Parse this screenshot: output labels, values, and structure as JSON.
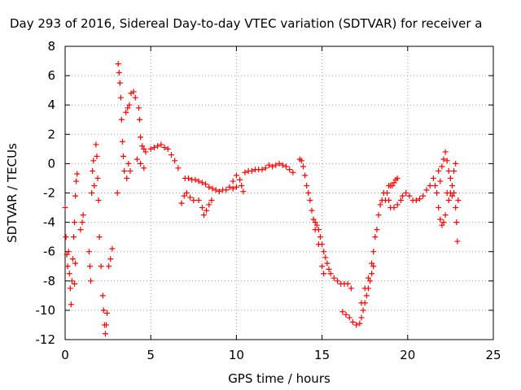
{
  "chart_data": {
    "type": "scatter",
    "title": "Day 293 of 2016, Sidereal Day-to-day VTEC variation (SDTVAR) for receiver a",
    "xlabel": "GPS time / hours",
    "ylabel": "SDTVAR / TECUs",
    "xlim": [
      0,
      25
    ],
    "ylim": [
      -12,
      8
    ],
    "xticks": [
      0,
      5,
      10,
      15,
      20,
      25
    ],
    "yticks": [
      -12,
      -10,
      -8,
      -6,
      -4,
      -2,
      0,
      2,
      4,
      6,
      8
    ],
    "grid": true,
    "marker": "plus",
    "marker_color": "#ff0000",
    "series": [
      {
        "points": [
          [
            0.0,
            -3.0
          ],
          [
            0.05,
            -5.0
          ],
          [
            0.1,
            -6.2
          ],
          [
            0.15,
            -7.0
          ],
          [
            0.2,
            -6.0
          ],
          [
            0.25,
            -7.5
          ],
          [
            0.3,
            -8.5
          ],
          [
            0.35,
            -9.6
          ],
          [
            0.4,
            -8.0
          ],
          [
            0.45,
            -6.5
          ],
          [
            0.5,
            -5.0
          ],
          [
            0.55,
            -4.0
          ],
          [
            0.6,
            -2.2
          ],
          [
            0.65,
            -1.2
          ],
          [
            0.7,
            -0.7
          ],
          [
            0.6,
            -6.8
          ],
          [
            0.55,
            -8.2
          ],
          [
            0.9,
            -4.5
          ],
          [
            1.0,
            -4.0
          ],
          [
            1.05,
            -3.5
          ],
          [
            1.4,
            -6.0
          ],
          [
            1.45,
            -7.0
          ],
          [
            1.5,
            -8.0
          ],
          [
            1.55,
            -2.0
          ],
          [
            1.6,
            -0.5
          ],
          [
            1.65,
            0.2
          ],
          [
            1.7,
            -1.5
          ],
          [
            1.8,
            1.3
          ],
          [
            1.85,
            0.5
          ],
          [
            1.9,
            -1.0
          ],
          [
            1.95,
            -2.5
          ],
          [
            2.0,
            -5.0
          ],
          [
            2.1,
            -7.0
          ],
          [
            2.2,
            -9.0
          ],
          [
            2.25,
            -10.0
          ],
          [
            2.3,
            -11.0
          ],
          [
            2.35,
            -11.6
          ],
          [
            2.4,
            -11.0
          ],
          [
            2.45,
            -10.2
          ],
          [
            2.55,
            -7.0
          ],
          [
            2.65,
            -6.5
          ],
          [
            2.75,
            -5.8
          ],
          [
            3.05,
            -2.0
          ],
          [
            3.1,
            6.8
          ],
          [
            3.15,
            6.2
          ],
          [
            3.2,
            5.5
          ],
          [
            3.25,
            4.5
          ],
          [
            3.3,
            3.0
          ],
          [
            3.35,
            1.5
          ],
          [
            3.4,
            0.5
          ],
          [
            3.45,
            -0.5
          ],
          [
            3.55,
            3.5
          ],
          [
            3.65,
            3.8
          ],
          [
            3.75,
            4.0
          ],
          [
            3.85,
            4.8
          ],
          [
            4.0,
            4.9
          ],
          [
            4.1,
            4.5
          ],
          [
            3.6,
            -1.0
          ],
          [
            3.7,
            0.0
          ],
          [
            3.8,
            -0.5
          ],
          [
            4.3,
            3.8
          ],
          [
            4.35,
            3.0
          ],
          [
            4.4,
            1.8
          ],
          [
            4.5,
            1.2
          ],
          [
            4.6,
            1.0
          ],
          [
            4.7,
            0.8
          ],
          [
            4.2,
            0.3
          ],
          [
            4.4,
            0.0
          ],
          [
            4.6,
            -0.3
          ],
          [
            5.0,
            1.0
          ],
          [
            5.2,
            1.1
          ],
          [
            5.4,
            1.2
          ],
          [
            5.6,
            1.3
          ],
          [
            5.8,
            1.1
          ],
          [
            6.0,
            1.0
          ],
          [
            6.2,
            0.6
          ],
          [
            6.4,
            0.2
          ],
          [
            6.6,
            -0.3
          ],
          [
            6.8,
            -2.7
          ],
          [
            6.95,
            -2.2
          ],
          [
            7.1,
            -2.0
          ],
          [
            7.3,
            -2.3
          ],
          [
            7.5,
            -2.5
          ],
          [
            7.0,
            -1.0
          ],
          [
            7.2,
            -1.0
          ],
          [
            7.4,
            -1.1
          ],
          [
            7.6,
            -1.1
          ],
          [
            7.8,
            -1.2
          ],
          [
            8.0,
            -1.3
          ],
          [
            8.2,
            -1.4
          ],
          [
            8.4,
            -1.6
          ],
          [
            8.6,
            -1.7
          ],
          [
            8.8,
            -1.8
          ],
          [
            7.8,
            -2.5
          ],
          [
            8.0,
            -3.0
          ],
          [
            8.1,
            -3.5
          ],
          [
            8.25,
            -3.2
          ],
          [
            8.4,
            -2.8
          ],
          [
            8.55,
            -2.5
          ],
          [
            9.0,
            -1.9
          ],
          [
            9.2,
            -1.8
          ],
          [
            9.4,
            -1.8
          ],
          [
            9.6,
            -1.6
          ],
          [
            9.8,
            -1.2
          ],
          [
            10.0,
            -0.8
          ],
          [
            10.2,
            -1.1
          ],
          [
            10.3,
            -1.5
          ],
          [
            10.4,
            -1.9
          ],
          [
            9.8,
            -1.7
          ],
          [
            10.0,
            -1.6
          ],
          [
            10.5,
            -0.6
          ],
          [
            10.7,
            -0.5
          ],
          [
            10.9,
            -0.5
          ],
          [
            11.1,
            -0.4
          ],
          [
            11.3,
            -0.4
          ],
          [
            11.5,
            -0.4
          ],
          [
            11.7,
            -0.3
          ],
          [
            11.9,
            -0.1
          ],
          [
            12.1,
            -0.2
          ],
          [
            12.3,
            -0.1
          ],
          [
            12.5,
            0.0
          ],
          [
            12.7,
            -0.1
          ],
          [
            12.9,
            -0.2
          ],
          [
            13.1,
            -0.4
          ],
          [
            13.3,
            -0.6
          ],
          [
            13.7,
            0.3
          ],
          [
            13.8,
            0.2
          ],
          [
            13.9,
            -0.2
          ],
          [
            14.0,
            -0.8
          ],
          [
            14.1,
            -1.5
          ],
          [
            14.2,
            -2.0
          ],
          [
            14.3,
            -2.5
          ],
          [
            14.4,
            -3.2
          ],
          [
            14.5,
            -3.8
          ],
          [
            14.6,
            -4.0
          ],
          [
            14.7,
            -4.2
          ],
          [
            14.8,
            -4.5
          ],
          [
            14.9,
            -5.0
          ],
          [
            15.0,
            -5.5
          ],
          [
            15.1,
            -6.0
          ],
          [
            15.2,
            -6.4
          ],
          [
            15.3,
            -6.8
          ],
          [
            15.4,
            -7.2
          ],
          [
            15.5,
            -7.5
          ],
          [
            15.7,
            -7.8
          ],
          [
            15.9,
            -8.0
          ],
          [
            16.1,
            -8.2
          ],
          [
            16.3,
            -8.2
          ],
          [
            16.5,
            -8.2
          ],
          [
            16.7,
            -8.5
          ],
          [
            14.6,
            -4.5
          ],
          [
            14.8,
            -5.5
          ],
          [
            15.0,
            -7.0
          ],
          [
            15.1,
            -7.5
          ],
          [
            16.2,
            -10.1
          ],
          [
            16.4,
            -10.3
          ],
          [
            16.6,
            -10.5
          ],
          [
            16.8,
            -10.8
          ],
          [
            17.0,
            -11.0
          ],
          [
            17.2,
            -10.9
          ],
          [
            17.3,
            -10.5
          ],
          [
            17.4,
            -10.0
          ],
          [
            17.5,
            -9.5
          ],
          [
            17.6,
            -9.0
          ],
          [
            17.7,
            -8.5
          ],
          [
            17.8,
            -8.0
          ],
          [
            17.9,
            -7.5
          ],
          [
            18.0,
            -7.0
          ],
          [
            17.3,
            -9.5
          ],
          [
            17.5,
            -8.5
          ],
          [
            17.7,
            -7.8
          ],
          [
            17.9,
            -6.8
          ],
          [
            18.0,
            -6.0
          ],
          [
            18.1,
            -5.0
          ],
          [
            18.2,
            -4.5
          ],
          [
            18.3,
            -3.5
          ],
          [
            18.4,
            -2.8
          ],
          [
            18.5,
            -2.5
          ],
          [
            18.6,
            -2.0
          ],
          [
            18.7,
            -2.5
          ],
          [
            18.8,
            -2.0
          ],
          [
            18.9,
            -1.5
          ],
          [
            19.0,
            -1.5
          ],
          [
            19.1,
            -1.5
          ],
          [
            19.2,
            -1.3
          ],
          [
            19.3,
            -1.1
          ],
          [
            19.4,
            -1.0
          ],
          [
            18.9,
            -2.5
          ],
          [
            19.0,
            -3.0
          ],
          [
            19.2,
            -3.0
          ],
          [
            19.4,
            -2.8
          ],
          [
            19.6,
            -2.5
          ],
          [
            19.7,
            -2.2
          ],
          [
            19.9,
            -2.0
          ],
          [
            20.1,
            -2.2
          ],
          [
            20.3,
            -2.5
          ],
          [
            20.5,
            -2.5
          ],
          [
            20.7,
            -2.4
          ],
          [
            20.9,
            -2.2
          ],
          [
            21.1,
            -1.8
          ],
          [
            21.3,
            -1.5
          ],
          [
            21.5,
            -1.0
          ],
          [
            21.6,
            -1.5
          ],
          [
            21.7,
            -2.0
          ],
          [
            21.8,
            -3.0
          ],
          [
            21.9,
            -3.8
          ],
          [
            22.0,
            -4.2
          ],
          [
            22.1,
            -4.0
          ],
          [
            22.2,
            -3.5
          ],
          [
            22.3,
            -2.0
          ],
          [
            21.8,
            -0.5
          ],
          [
            21.9,
            -1.2
          ],
          [
            22.0,
            -0.2
          ],
          [
            22.1,
            0.3
          ],
          [
            22.2,
            0.8
          ],
          [
            22.3,
            0.2
          ],
          [
            22.4,
            -0.5
          ],
          [
            22.5,
            -1.0
          ],
          [
            22.6,
            -1.5
          ],
          [
            22.7,
            -2.0
          ],
          [
            22.8,
            -3.0
          ],
          [
            22.85,
            -4.0
          ],
          [
            22.9,
            -5.3
          ],
          [
            22.95,
            -2.5
          ],
          [
            22.7,
            -0.5
          ],
          [
            22.8,
            0.0
          ],
          [
            22.4,
            -2.5
          ],
          [
            22.5,
            -2.0
          ],
          [
            22.6,
            -2.2
          ]
        ]
      }
    ]
  }
}
